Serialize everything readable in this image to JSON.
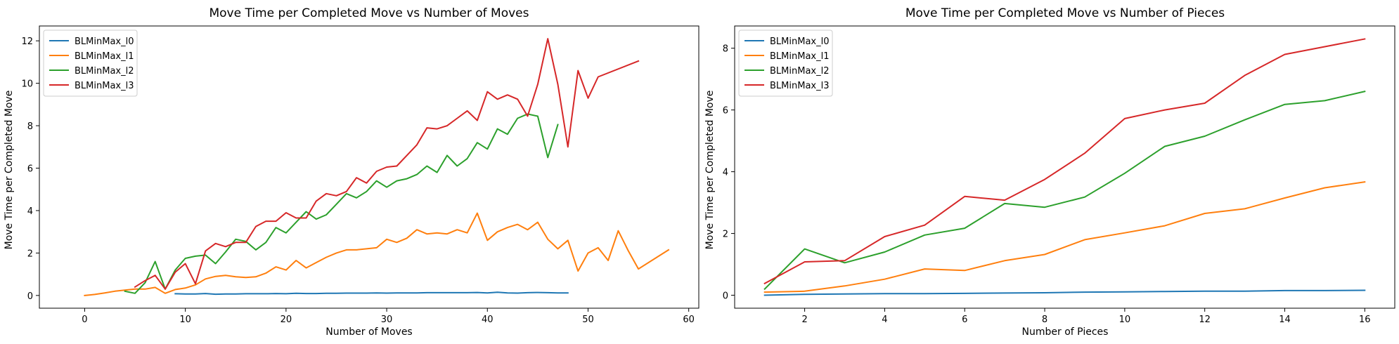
{
  "chart_data": [
    {
      "type": "line",
      "title": "Move Time per Completed Move vs Number of Moves",
      "xlabel": "Number of Moves",
      "ylabel": "Move Time per Completed Move",
      "xlim": [
        -4.5,
        61
      ],
      "ylim": [
        -0.6,
        12.7
      ],
      "xticks": [
        0,
        10,
        20,
        30,
        40,
        50,
        60
      ],
      "yticks": [
        0,
        2,
        4,
        6,
        8,
        10,
        12
      ],
      "grid": false,
      "legend_position": "top-left",
      "series": [
        {
          "name": "BLMinMax_l0",
          "color": "#1f77b4",
          "x": [
            9,
            10,
            11,
            12,
            13,
            14,
            15,
            16,
            17,
            18,
            19,
            20,
            21,
            22,
            23,
            24,
            25,
            26,
            27,
            28,
            29,
            30,
            31,
            32,
            33,
            34,
            35,
            36,
            37,
            38,
            39,
            40,
            41,
            42,
            43,
            44,
            45,
            46,
            47,
            48
          ],
          "y": [
            0.08,
            0.07,
            0.07,
            0.09,
            0.06,
            0.07,
            0.07,
            0.08,
            0.08,
            0.08,
            0.09,
            0.08,
            0.1,
            0.09,
            0.09,
            0.1,
            0.1,
            0.11,
            0.11,
            0.11,
            0.12,
            0.11,
            0.12,
            0.12,
            0.12,
            0.13,
            0.13,
            0.13,
            0.13,
            0.13,
            0.14,
            0.12,
            0.15,
            0.12,
            0.11,
            0.13,
            0.14,
            0.13,
            0.12,
            0.12
          ]
        },
        {
          "name": "BLMinMax_l1",
          "color": "#ff7f0e",
          "x": [
            0,
            1,
            2,
            3,
            4,
            5,
            6,
            7,
            8,
            9,
            10,
            11,
            12,
            13,
            14,
            15,
            16,
            17,
            18,
            19,
            20,
            21,
            22,
            23,
            24,
            25,
            26,
            27,
            28,
            29,
            30,
            31,
            32,
            33,
            34,
            35,
            36,
            37,
            38,
            39,
            40,
            41,
            42,
            43,
            44,
            45,
            46,
            47,
            48,
            49,
            50,
            51,
            52,
            53,
            54,
            55,
            58
          ],
          "y": [
            0,
            0.05,
            0.12,
            0.2,
            0.25,
            0.3,
            0.3,
            0.38,
            0.1,
            0.28,
            0.35,
            0.5,
            0.78,
            0.9,
            0.95,
            0.88,
            0.85,
            0.88,
            1.05,
            1.35,
            1.2,
            1.65,
            1.3,
            1.55,
            1.8,
            2.0,
            2.15,
            2.15,
            2.2,
            2.25,
            2.65,
            2.5,
            2.7,
            3.1,
            2.9,
            2.95,
            2.9,
            3.1,
            2.95,
            3.88,
            2.6,
            3.0,
            3.2,
            3.35,
            3.1,
            3.45,
            2.65,
            2.2,
            2.6,
            1.15,
            2.0,
            2.25,
            1.65,
            3.05,
            2.1,
            1.25,
            2.15
          ]
        },
        {
          "name": "BLMinMax_l2",
          "color": "#2ca02c",
          "x": [
            4,
            5,
            6,
            7,
            8,
            9,
            10,
            11,
            12,
            13,
            14,
            15,
            16,
            17,
            18,
            19,
            20,
            21,
            22,
            23,
            24,
            25,
            26,
            27,
            28,
            29,
            30,
            31,
            32,
            33,
            34,
            35,
            36,
            37,
            38,
            39,
            40,
            41,
            42,
            43,
            44,
            45,
            46,
            47
          ],
          "y": [
            0.2,
            0.1,
            0.6,
            1.6,
            0.3,
            1.2,
            1.75,
            1.85,
            1.9,
            1.5,
            2.05,
            2.65,
            2.55,
            2.15,
            2.5,
            3.2,
            2.95,
            3.45,
            3.95,
            3.6,
            3.8,
            4.3,
            4.8,
            4.6,
            4.9,
            5.4,
            5.1,
            5.4,
            5.5,
            5.7,
            6.1,
            5.8,
            6.6,
            6.1,
            6.45,
            7.2,
            6.9,
            7.85,
            7.6,
            8.35,
            8.55,
            8.45,
            6.5,
            8.05
          ]
        },
        {
          "name": "BLMinMax_l3",
          "color": "#d62728",
          "x": [
            5,
            6,
            7,
            8,
            9,
            10,
            11,
            12,
            13,
            14,
            15,
            16,
            17,
            18,
            19,
            20,
            21,
            22,
            23,
            24,
            25,
            26,
            27,
            28,
            29,
            30,
            31,
            32,
            33,
            34,
            35,
            36,
            37,
            38,
            39,
            40,
            41,
            42,
            43,
            44,
            45,
            46,
            47,
            48,
            49,
            50,
            51,
            55
          ],
          "y": [
            0.4,
            0.7,
            0.95,
            0.3,
            1.1,
            1.5,
            0.55,
            2.1,
            2.45,
            2.3,
            2.5,
            2.5,
            3.25,
            3.5,
            3.5,
            3.9,
            3.65,
            3.65,
            4.45,
            4.8,
            4.7,
            4.9,
            5.55,
            5.3,
            5.85,
            6.05,
            6.1,
            6.6,
            7.1,
            7.9,
            7.85,
            8.0,
            8.35,
            8.7,
            8.25,
            9.6,
            9.25,
            9.45,
            9.25,
            8.45,
            9.95,
            12.1,
            9.95,
            7.0,
            10.6,
            9.3,
            10.3,
            11.05
          ]
        }
      ]
    },
    {
      "type": "line",
      "title": "Move Time per Completed Move vs Number of Pieces",
      "xlabel": "Number of Pieces",
      "ylabel": "Move Time per Completed Move",
      "xlim": [
        0.25,
        16.75
      ],
      "ylim": [
        -0.42,
        8.72
      ],
      "xticks": [
        2,
        4,
        6,
        8,
        10,
        12,
        14,
        16
      ],
      "yticks": [
        0,
        2,
        4,
        6,
        8
      ],
      "grid": false,
      "legend_position": "top-left",
      "series": [
        {
          "name": "BLMinMax_l0",
          "color": "#1f77b4",
          "x": [
            1,
            2,
            3,
            4,
            5,
            6,
            7,
            8,
            9,
            10,
            11,
            12,
            13,
            14,
            15,
            16
          ],
          "y": [
            0.0,
            0.03,
            0.04,
            0.05,
            0.05,
            0.06,
            0.07,
            0.08,
            0.1,
            0.11,
            0.12,
            0.13,
            0.13,
            0.15,
            0.15,
            0.16
          ]
        },
        {
          "name": "BLMinMax_l1",
          "color": "#ff7f0e",
          "x": [
            1,
            2,
            3,
            4,
            5,
            6,
            7,
            8,
            9,
            10,
            11,
            12,
            13,
            14,
            15,
            16
          ],
          "y": [
            0.1,
            0.13,
            0.3,
            0.52,
            0.85,
            0.8,
            1.12,
            1.32,
            1.8,
            2.02,
            2.25,
            2.65,
            2.8,
            3.15,
            3.48,
            3.67
          ]
        },
        {
          "name": "BLMinMax_l2",
          "color": "#2ca02c",
          "x": [
            1,
            2,
            3,
            4,
            5,
            6,
            7,
            8,
            9,
            10,
            11,
            12,
            13,
            14,
            15,
            16
          ],
          "y": [
            0.2,
            1.5,
            1.05,
            1.4,
            1.95,
            2.17,
            2.97,
            2.85,
            3.18,
            3.95,
            4.82,
            5.15,
            5.68,
            6.18,
            6.3,
            6.6
          ]
        },
        {
          "name": "BLMinMax_l3",
          "color": "#d62728",
          "x": [
            1,
            2,
            3,
            4,
            5,
            6,
            7,
            8,
            9,
            10,
            11,
            12,
            13,
            14,
            15,
            16
          ],
          "y": [
            0.38,
            1.08,
            1.12,
            1.9,
            2.27,
            3.2,
            3.08,
            3.75,
            4.6,
            5.72,
            6.0,
            6.22,
            7.12,
            7.8,
            8.05,
            8.3
          ]
        }
      ]
    }
  ]
}
